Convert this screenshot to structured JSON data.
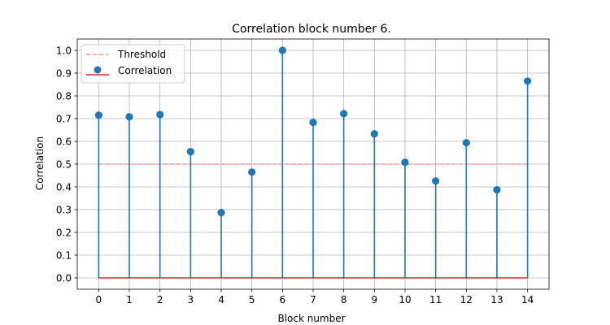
{
  "chart_data": {
    "type": "stem",
    "title": "Correlation block number 6.",
    "xlabel": "Block number",
    "ylabel": "Correlation",
    "x": [
      0,
      1,
      2,
      3,
      4,
      5,
      6,
      7,
      8,
      9,
      10,
      11,
      12,
      13,
      14
    ],
    "xticks": [
      "0",
      "1",
      "2",
      "3",
      "4",
      "5",
      "6",
      "7",
      "8",
      "9",
      "10",
      "11",
      "12",
      "13",
      "14"
    ],
    "yticks": [
      "0.0",
      "0.1",
      "0.2",
      "0.3",
      "0.4",
      "0.5",
      "0.6",
      "0.7",
      "0.8",
      "0.9",
      "1.0"
    ],
    "xlim": [
      -0.7,
      14.7
    ],
    "ylim": [
      -0.05,
      1.05
    ],
    "grid": true,
    "legend_position": "top-left",
    "series": [
      {
        "name": "Correlation",
        "type": "stem",
        "color": "#1f77b4",
        "baseline_color": "#d62728",
        "values": [
          0.715,
          0.708,
          0.718,
          0.555,
          0.287,
          0.465,
          1.0,
          0.683,
          0.722,
          0.633,
          0.508,
          0.426,
          0.594,
          0.387,
          0.865
        ]
      },
      {
        "name": "Threshold",
        "type": "line",
        "style": "dashed",
        "color": "#f4a09c",
        "value": 0.5
      }
    ]
  }
}
